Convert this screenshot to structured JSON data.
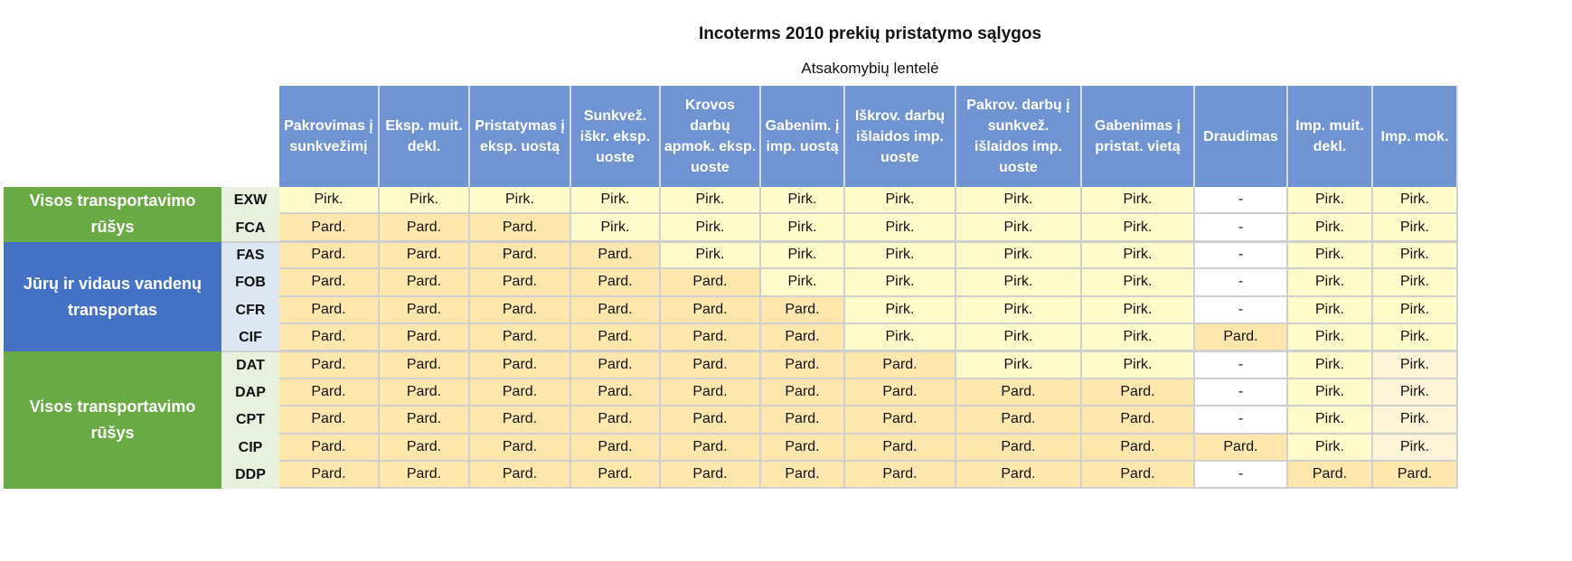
{
  "title": "Incoterms 2010 prekių pristatymo sąlygos",
  "subtitle": "Atsakomybių lentelė",
  "columns": [
    "Pakrovimas į sunkvežimį",
    "Eksp. muit. dekl.",
    "Pristatymas į eksp. uostą",
    "Sunkvež. iškr. eksp. uoste",
    "Krovos darbų apmok. eksp. uoste",
    "Gabenim. į imp. uostą",
    "Iškrov. darbų išlaidos imp. uoste",
    "Pakrov. darbų į sunkvež. išlaidos imp. uoste",
    "Gabenimas į pristat. vietą",
    "Draudimas",
    "Imp. muit. dekl.",
    "Imp. mok."
  ],
  "groups": [
    {
      "label": "Visos transportavimo rūšys",
      "color": "#6aaa45"
    },
    {
      "label": "Jūrų ir vidaus vandenų transportas",
      "color": "#4472c4"
    },
    {
      "label": "Visos transportavimo rūšys",
      "color": "#6aaa45"
    }
  ],
  "rows": [
    {
      "code": "EXW",
      "values": [
        "Pirk.",
        "Pirk.",
        "Pirk.",
        "Pirk.",
        "Pirk.",
        "Pirk.",
        "Pirk.",
        "Pirk.",
        "Pirk.",
        "-",
        "Pirk.",
        "Pirk."
      ]
    },
    {
      "code": "FCA",
      "values": [
        "Pard.",
        "Pard.",
        "Pard.",
        "Pirk.",
        "Pirk.",
        "Pirk.",
        "Pirk.",
        "Pirk.",
        "Pirk.",
        "-",
        "Pirk.",
        "Pirk."
      ]
    },
    {
      "code": "FAS",
      "values": [
        "Pard.",
        "Pard.",
        "Pard.",
        "Pard.",
        "Pirk.",
        "Pirk.",
        "Pirk.",
        "Pirk.",
        "Pirk.",
        "-",
        "Pirk.",
        "Pirk."
      ]
    },
    {
      "code": "FOB",
      "values": [
        "Pard.",
        "Pard.",
        "Pard.",
        "Pard.",
        "Pard.",
        "Pirk.",
        "Pirk.",
        "Pirk.",
        "Pirk.",
        "-",
        "Pirk.",
        "Pirk."
      ]
    },
    {
      "code": "CFR",
      "values": [
        "Pard.",
        "Pard.",
        "Pard.",
        "Pard.",
        "Pard.",
        "Pard.",
        "Pirk.",
        "Pirk.",
        "Pirk.",
        "-",
        "Pirk.",
        "Pirk."
      ]
    },
    {
      "code": "CIF",
      "values": [
        "Pard.",
        "Pard.",
        "Pard.",
        "Pard.",
        "Pard.",
        "Pard.",
        "Pirk.",
        "Pirk.",
        "Pirk.",
        "Pard.",
        "Pirk.",
        "Pirk."
      ]
    },
    {
      "code": "DAT",
      "values": [
        "Pard.",
        "Pard.",
        "Pard.",
        "Pard.",
        "Pard.",
        "Pard.",
        "Pard.",
        "Pirk.",
        "Pirk.",
        "-",
        "Pirk.",
        "Pirk."
      ]
    },
    {
      "code": "DAP",
      "values": [
        "Pard.",
        "Pard.",
        "Pard.",
        "Pard.",
        "Pard.",
        "Pard.",
        "Pard.",
        "Pard.",
        "Pard.",
        "-",
        "Pirk.",
        "Pirk."
      ]
    },
    {
      "code": "CPT",
      "values": [
        "Pard.",
        "Pard.",
        "Pard.",
        "Pard.",
        "Pard.",
        "Pard.",
        "Pard.",
        "Pard.",
        "Pard.",
        "-",
        "Pirk.",
        "Pirk."
      ]
    },
    {
      "code": "CIP",
      "values": [
        "Pard.",
        "Pard.",
        "Pard.",
        "Pard.",
        "Pard.",
        "Pard.",
        "Pard.",
        "Pard.",
        "Pard.",
        "Pard.",
        "Pirk.",
        "Pirk."
      ]
    },
    {
      "code": "DDP",
      "values": [
        "Pard.",
        "Pard.",
        "Pard.",
        "Pard.",
        "Pard.",
        "Pard.",
        "Pard.",
        "Pard.",
        "Pard.",
        "-",
        "Pard.",
        "Pard."
      ]
    }
  ]
}
